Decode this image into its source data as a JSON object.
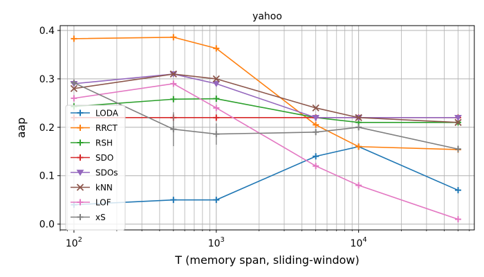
{
  "chart_data": {
    "type": "line",
    "title": "yahoo",
    "xlabel": "T (memory span, sliding-window)",
    "ylabel": "aap",
    "xscale": "log",
    "xlim": [
      80,
      65000
    ],
    "ylim": [
      -0.012,
      0.41
    ],
    "x": [
      100,
      500,
      1000,
      5000,
      10000,
      50000
    ],
    "xticks": [
      {
        "value": 100,
        "base": "10",
        "exp": "2"
      },
      {
        "value": 1000,
        "base": "10",
        "exp": "3"
      },
      {
        "value": 10000,
        "base": "10",
        "exp": "4"
      }
    ],
    "yticks": [
      {
        "value": 0.0,
        "label": "0.0"
      },
      {
        "value": 0.1,
        "label": "0.1"
      },
      {
        "value": 0.2,
        "label": "0.2"
      },
      {
        "value": 0.3,
        "label": "0.3"
      },
      {
        "value": 0.4,
        "label": "0.4"
      }
    ],
    "grid": "major and minor",
    "legend_position": "center-left",
    "series": [
      {
        "name": "LODA",
        "color": "#1f77b4",
        "marker": "plus",
        "values": [
          0.04,
          0.05,
          0.05,
          0.14,
          0.16,
          0.07
        ]
      },
      {
        "name": "RRCT",
        "color": "#ff7f0e",
        "marker": "plus",
        "values": [
          0.383,
          0.386,
          0.363,
          0.205,
          0.16,
          0.154
        ]
      },
      {
        "name": "RSH",
        "color": "#2ca02c",
        "marker": "plus",
        "values": [
          0.243,
          0.258,
          0.259,
          0.22,
          0.21,
          0.21
        ]
      },
      {
        "name": "SDO",
        "color": "#d62728",
        "marker": "plus",
        "values": [
          0.22,
          0.22,
          0.22,
          0.22,
          0.22,
          0.22
        ]
      },
      {
        "name": "SDOs",
        "color": "#9467bd",
        "marker": "triangle-down",
        "values": [
          0.29,
          0.31,
          0.29,
          0.22,
          0.22,
          0.22
        ]
      },
      {
        "name": "kNN",
        "color": "#8c564b",
        "marker": "x",
        "values": [
          0.28,
          0.31,
          0.3,
          0.24,
          0.22,
          0.21
        ]
      },
      {
        "name": "LOF",
        "color": "#e377c2",
        "marker": "plus",
        "values": [
          0.26,
          0.29,
          0.24,
          0.12,
          0.08,
          0.01
        ]
      },
      {
        "name": "xS",
        "color": "#7f7f7f",
        "marker": "plus",
        "values": [
          0.292,
          0.196,
          0.186,
          0.19,
          0.2,
          0.155
        ],
        "err": [
          0,
          0.035,
          0.022,
          0,
          0,
          0.007
        ]
      }
    ]
  }
}
